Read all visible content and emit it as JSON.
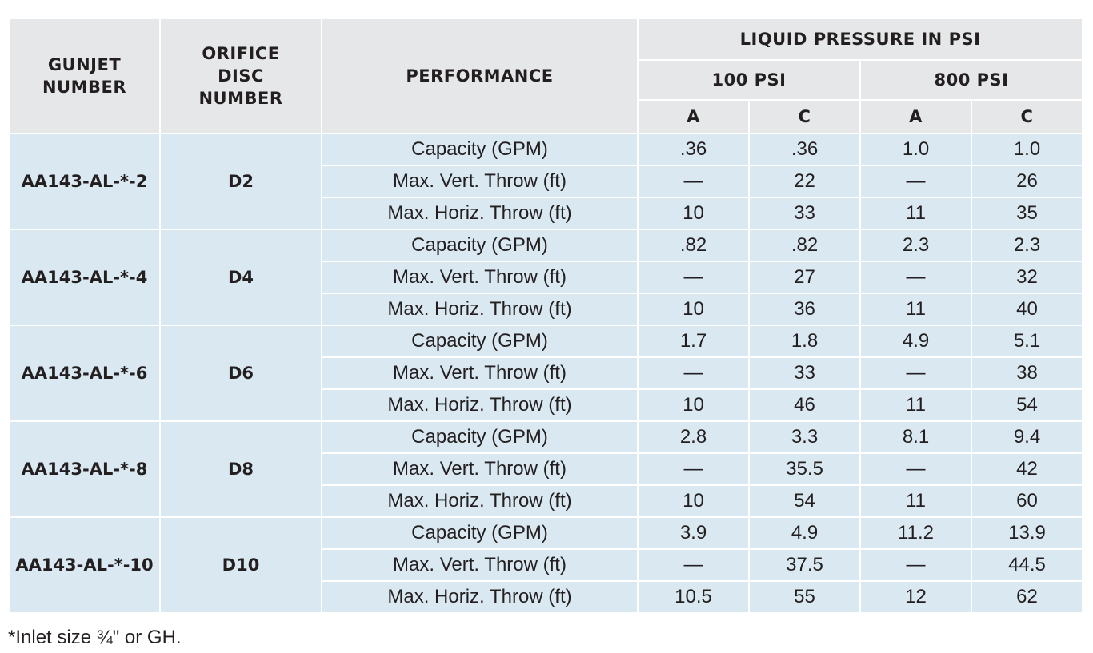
{
  "header": {
    "gunjet": "GUNJET NUMBER",
    "orifice": "ORIFICE DISC NUMBER",
    "performance": "PERFORMANCE",
    "liquid_pressure": "LIQUID PRESSURE IN PSI",
    "psi_100": "100 PSI",
    "psi_800": "800 PSI",
    "col_a": "A",
    "col_c": "C"
  },
  "rows": [
    {
      "gunjet": "AA143-AL-*-2",
      "disc": "D2",
      "metrics": [
        {
          "label": "Capacity (GPM)",
          "a100": ".36",
          "c100": ".36",
          "a800": "1.0",
          "c800": "1.0"
        },
        {
          "label": "Max. Vert. Throw (ft)",
          "a100": "—",
          "c100": "22",
          "a800": "—",
          "c800": "26"
        },
        {
          "label": "Max. Horiz. Throw (ft)",
          "a100": "10",
          "c100": "33",
          "a800": "11",
          "c800": "35"
        }
      ]
    },
    {
      "gunjet": "AA143-AL-*-4",
      "disc": "D4",
      "metrics": [
        {
          "label": "Capacity (GPM)",
          "a100": ".82",
          "c100": ".82",
          "a800": "2.3",
          "c800": "2.3"
        },
        {
          "label": "Max. Vert. Throw (ft)",
          "a100": "—",
          "c100": "27",
          "a800": "—",
          "c800": "32"
        },
        {
          "label": "Max. Horiz. Throw (ft)",
          "a100": "10",
          "c100": "36",
          "a800": "11",
          "c800": "40"
        }
      ]
    },
    {
      "gunjet": "AA143-AL-*-6",
      "disc": "D6",
      "metrics": [
        {
          "label": "Capacity (GPM)",
          "a100": "1.7",
          "c100": "1.8",
          "a800": "4.9",
          "c800": "5.1"
        },
        {
          "label": "Max. Vert. Throw (ft)",
          "a100": "—",
          "c100": "33",
          "a800": "—",
          "c800": "38"
        },
        {
          "label": "Max. Horiz. Throw (ft)",
          "a100": "10",
          "c100": "46",
          "a800": "11",
          "c800": "54"
        }
      ]
    },
    {
      "gunjet": "AA143-AL-*-8",
      "disc": "D8",
      "metrics": [
        {
          "label": "Capacity (GPM)",
          "a100": "2.8",
          "c100": "3.3",
          "a800": "8.1",
          "c800": "9.4"
        },
        {
          "label": "Max. Vert. Throw (ft)",
          "a100": "—",
          "c100": "35.5",
          "a800": "—",
          "c800": "42"
        },
        {
          "label": "Max. Horiz. Throw (ft)",
          "a100": "10",
          "c100": "54",
          "a800": "11",
          "c800": "60"
        }
      ]
    },
    {
      "gunjet": "AA143-AL-*-10",
      "disc": "D10",
      "metrics": [
        {
          "label": "Capacity (GPM)",
          "a100": "3.9",
          "c100": "4.9",
          "a800": "11.2",
          "c800": "13.9"
        },
        {
          "label": "Max. Vert. Throw (ft)",
          "a100": "—",
          "c100": "37.5",
          "a800": "—",
          "c800": "44.5"
        },
        {
          "label": "Max. Horiz. Throw (ft)",
          "a100": "10.5",
          "c100": "55",
          "a800": "12",
          "c800": "62"
        }
      ]
    }
  ],
  "footnote": "*Inlet size ¾\" or GH."
}
